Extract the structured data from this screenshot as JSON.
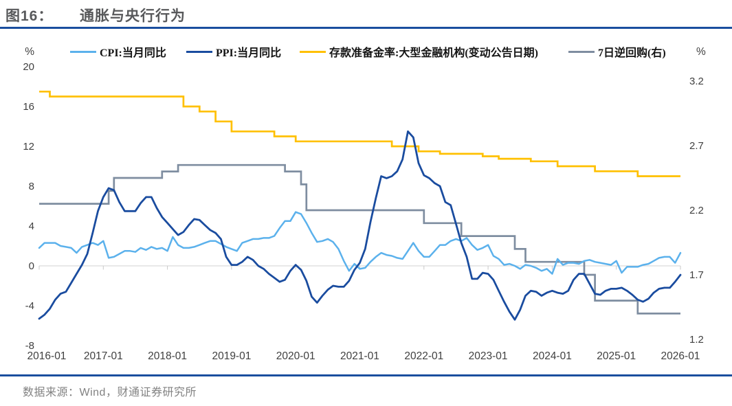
{
  "header": {
    "figure_label": "图16：",
    "title": "通胀与央行行为"
  },
  "footer": {
    "source": "数据来源：Wind，财通证券研究所"
  },
  "chart_data": {
    "type": "line",
    "title": "通胀与央行行为",
    "x_start": "2016-01",
    "x_interval": "month",
    "x_tick_labels": [
      "2016-01",
      "2017-01",
      "2018-01",
      "2019-01",
      "2020-01",
      "2021-01",
      "2022-01",
      "2023-01",
      "2024-01",
      "2025-01",
      "2026-01"
    ],
    "left_axis": {
      "label": "%",
      "min": -8,
      "max": 20,
      "ticks": [
        20,
        16,
        12,
        8,
        4,
        0,
        -4,
        -8
      ]
    },
    "right_axis": {
      "label": "%",
      "min": 1.2,
      "max": 3.2,
      "ticks": [
        3.2,
        2.7,
        2.2,
        1.7,
        1.2
      ]
    },
    "grid": "zero-line-only",
    "legend_position": "top",
    "colors": {
      "zero_line": "#D9D9D9",
      "year_tick": "#C9C9C9"
    },
    "series": [
      {
        "id": "cpi",
        "name": "CPI:当月同比",
        "axis": "left",
        "type": "line",
        "color": "#5BB1EC",
        "values": [
          1.8,
          2.3,
          2.3,
          2.3,
          2.0,
          1.9,
          1.8,
          1.3,
          1.9,
          2.1,
          2.3,
          2.1,
          2.5,
          0.8,
          0.9,
          1.2,
          1.5,
          1.5,
          1.4,
          1.8,
          1.6,
          1.9,
          1.7,
          1.8,
          1.5,
          2.9,
          2.1,
          1.8,
          1.8,
          1.9,
          2.1,
          2.3,
          2.5,
          2.5,
          2.2,
          1.9,
          1.7,
          1.5,
          2.3,
          2.5,
          2.7,
          2.7,
          2.8,
          2.8,
          3.0,
          3.8,
          4.5,
          4.5,
          5.4,
          5.2,
          4.3,
          3.3,
          2.4,
          2.5,
          2.7,
          2.4,
          1.7,
          0.5,
          -0.5,
          0.2,
          -0.3,
          -0.2,
          0.4,
          0.9,
          1.3,
          1.1,
          1.0,
          0.8,
          0.7,
          1.5,
          2.3,
          1.5,
          0.9,
          0.9,
          1.5,
          2.1,
          2.1,
          2.5,
          2.7,
          2.5,
          2.8,
          2.1,
          1.6,
          1.8,
          2.1,
          1.0,
          0.7,
          0.1,
          0.2,
          0.0,
          -0.3,
          0.1,
          0.0,
          -0.2,
          -0.5,
          -0.3,
          -0.8,
          0.7,
          0.1,
          0.3,
          0.3,
          0.2,
          0.5,
          0.6,
          0.4,
          0.3,
          0.2,
          0.1,
          0.5,
          -0.7,
          -0.1,
          -0.1,
          -0.1,
          0.1,
          0.2,
          0.5,
          0.8,
          0.9,
          0.9,
          0.3,
          1.3
        ]
      },
      {
        "id": "ppi",
        "name": "PPI:当月同比",
        "axis": "left",
        "type": "line",
        "color": "#1A4C9F",
        "values": [
          -5.3,
          -4.9,
          -4.3,
          -3.4,
          -2.8,
          -2.6,
          -1.7,
          -0.8,
          0.1,
          1.2,
          3.3,
          5.5,
          6.9,
          7.8,
          7.6,
          6.4,
          5.5,
          5.5,
          5.5,
          6.3,
          6.9,
          6.9,
          5.8,
          4.9,
          4.3,
          3.7,
          3.1,
          3.4,
          4.1,
          4.7,
          4.6,
          4.1,
          3.6,
          3.3,
          2.7,
          0.9,
          0.1,
          0.1,
          0.4,
          0.9,
          0.6,
          0.0,
          -0.3,
          -0.8,
          -1.2,
          -1.6,
          -1.4,
          -0.5,
          0.1,
          -0.4,
          -1.5,
          -3.1,
          -3.7,
          -3.0,
          -2.4,
          -2.0,
          -2.1,
          -2.1,
          -1.5,
          -0.4,
          0.3,
          1.7,
          4.4,
          6.8,
          9.0,
          8.8,
          9.0,
          9.5,
          10.7,
          13.5,
          12.9,
          10.3,
          9.1,
          8.8,
          8.3,
          8.0,
          6.4,
          6.1,
          4.2,
          2.3,
          0.9,
          -1.3,
          -1.3,
          -0.7,
          -0.8,
          -1.4,
          -2.5,
          -3.6,
          -4.6,
          -5.4,
          -4.4,
          -3.0,
          -2.5,
          -2.6,
          -3.0,
          -2.7,
          -2.5,
          -2.7,
          -2.8,
          -2.5,
          -1.4,
          -0.8,
          -0.8,
          -1.8,
          -2.8,
          -2.9,
          -2.5,
          -2.3,
          -2.3,
          -2.2,
          -2.5,
          -2.9,
          -3.4,
          -3.6,
          -3.3,
          -2.7,
          -2.3,
          -2.2,
          -2.2,
          -1.6,
          -0.9
        ]
      },
      {
        "id": "rrr",
        "name": "存款准备金率:大型金融机构(变动公告日期)",
        "axis": "left",
        "type": "step",
        "color": "#FFC000",
        "points": [
          [
            "2016-01",
            17.5
          ],
          [
            "2016-03",
            17.0
          ],
          [
            "2018-04",
            16.0
          ],
          [
            "2018-07",
            15.5
          ],
          [
            "2018-10",
            14.5
          ],
          [
            "2019-01",
            13.5
          ],
          [
            "2019-09",
            13.0
          ],
          [
            "2020-01",
            12.5
          ],
          [
            "2021-07",
            12.0
          ],
          [
            "2021-12",
            11.5
          ],
          [
            "2022-04",
            11.25
          ],
          [
            "2022-12",
            11.0
          ],
          [
            "2023-03",
            10.75
          ],
          [
            "2023-09",
            10.5
          ],
          [
            "2024-02",
            10.0
          ],
          [
            "2024-09",
            9.5
          ],
          [
            "2025-05",
            9.0
          ]
        ]
      },
      {
        "id": "repo7d",
        "name": "7日逆回购(右)",
        "axis": "right",
        "type": "step",
        "color": "#7E8DA0",
        "points": [
          [
            "2016-01",
            2.25
          ],
          [
            "2017-02",
            2.35
          ],
          [
            "2017-03",
            2.45
          ],
          [
            "2017-12",
            2.5
          ],
          [
            "2018-03",
            2.55
          ],
          [
            "2019-11",
            2.5
          ],
          [
            "2020-02",
            2.4
          ],
          [
            "2020-03",
            2.2
          ],
          [
            "2022-01",
            2.1
          ],
          [
            "2022-08",
            2.0
          ],
          [
            "2023-06",
            1.9
          ],
          [
            "2023-08",
            1.8
          ],
          [
            "2024-07",
            1.7
          ],
          [
            "2024-09",
            1.5
          ],
          [
            "2025-05",
            1.4
          ]
        ]
      }
    ]
  }
}
